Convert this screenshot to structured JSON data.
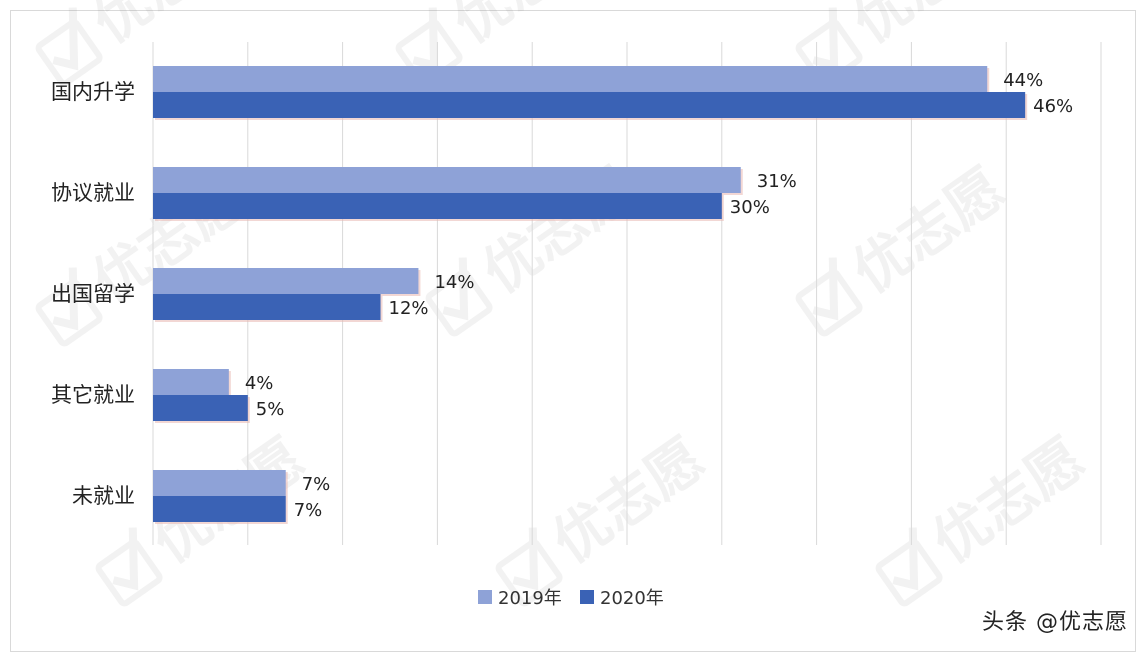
{
  "chart_data": {
    "type": "bar",
    "orientation": "horizontal",
    "categories": [
      "国内升学",
      "协议就业",
      "出国留学",
      "其它就业",
      "未就业"
    ],
    "series": [
      {
        "name": "2019年",
        "values": [
          44,
          31,
          14,
          4,
          7
        ],
        "color": "#8ea2d7"
      },
      {
        "name": "2020年",
        "values": [
          46,
          30,
          12,
          5,
          7
        ],
        "color": "#3a62b5"
      }
    ],
    "value_suffix": "%",
    "xlim": [
      0,
      50
    ],
    "grid": "vertical",
    "legend_position": "bottom"
  },
  "watermark": {
    "text": "优志愿",
    "icon": "checkmark-box-icon"
  },
  "source_label": "头条 @优志愿"
}
